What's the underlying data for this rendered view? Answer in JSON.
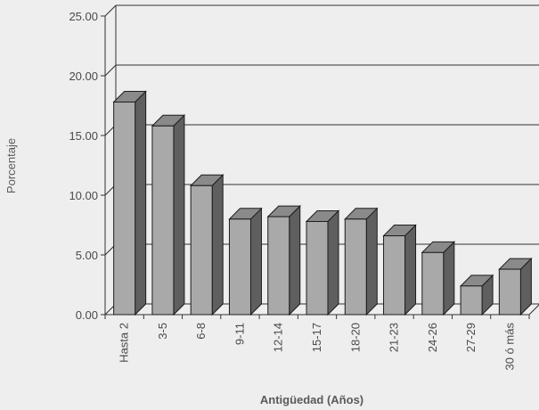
{
  "chart_data": {
    "type": "bar",
    "xlabel": "Antigüedad (Años)",
    "ylabel": "Porcentaje",
    "ylim": [
      0,
      25
    ],
    "yticks": [
      "0.00",
      "5.00",
      "10.00",
      "15.00",
      "20.00",
      "25.00"
    ],
    "grid": true,
    "three_d": true,
    "categories": [
      "Hasta 2",
      "3-5",
      "6-8",
      "9-11",
      "12-14",
      "15-17",
      "18-20",
      "21-23",
      "24-26",
      "27-29",
      "30 ó más"
    ],
    "values": [
      17.8,
      15.8,
      10.8,
      8.0,
      8.2,
      7.8,
      8.0,
      6.6,
      5.2,
      2.4,
      3.8
    ],
    "colors": {
      "front": "#a9a9a9",
      "side": "#5f5f5f",
      "top": "#8a8a8a",
      "outline": "#1c1c1c",
      "grid": "#333333"
    }
  }
}
